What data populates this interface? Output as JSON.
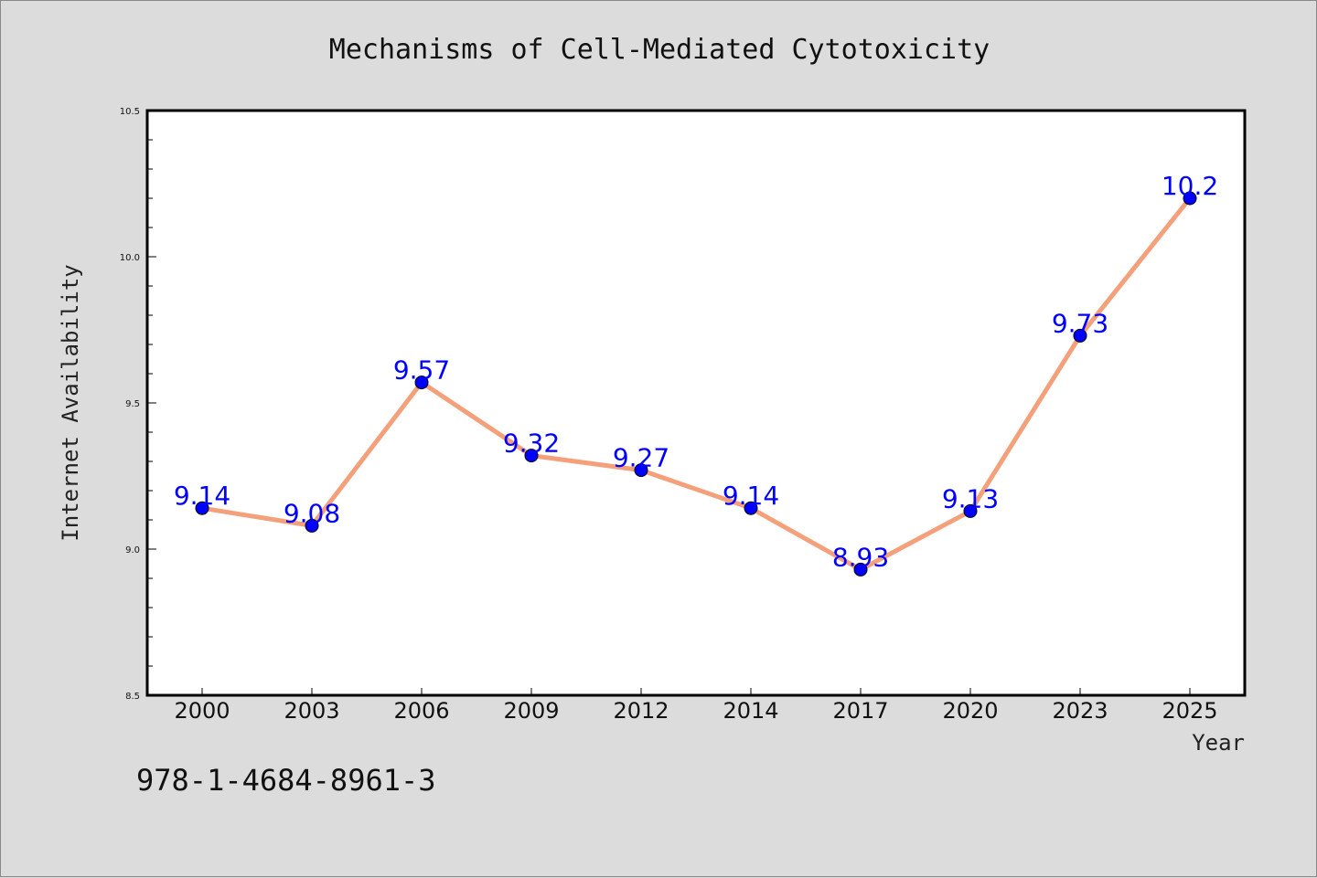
{
  "chart_data": {
    "type": "line",
    "title": "Mechanisms of Cell-Mediated Cytotoxicity",
    "xlabel": "Year",
    "ylabel": "Internet Availability",
    "categories": [
      "2000",
      "2003",
      "2006",
      "2009",
      "2012",
      "2014",
      "2017",
      "2020",
      "2023",
      "2025"
    ],
    "series": [
      {
        "values": [
          9.14,
          9.08,
          9.57,
          9.32,
          9.27,
          9.14,
          8.93,
          9.13,
          9.73,
          10.2
        ],
        "labels": [
          "9.14",
          "9.08",
          "9.57",
          "9.32",
          "9.27",
          "9.14",
          "8.93",
          "9.13",
          "9.73",
          "10.2"
        ],
        "line_color": "#f4a07a",
        "marker_color": "#0000ff"
      }
    ],
    "ylim": [
      8.5,
      10.5
    ],
    "yticks": [
      "8.5",
      "9.0",
      "9.5",
      "10.0",
      "10.5"
    ],
    "grid": false,
    "legend": "none"
  },
  "footer": {
    "isbn": "978-1-4684-8961-3"
  },
  "colors": {
    "background": "#dcdcdc",
    "plot_background": "#ffffff"
  }
}
